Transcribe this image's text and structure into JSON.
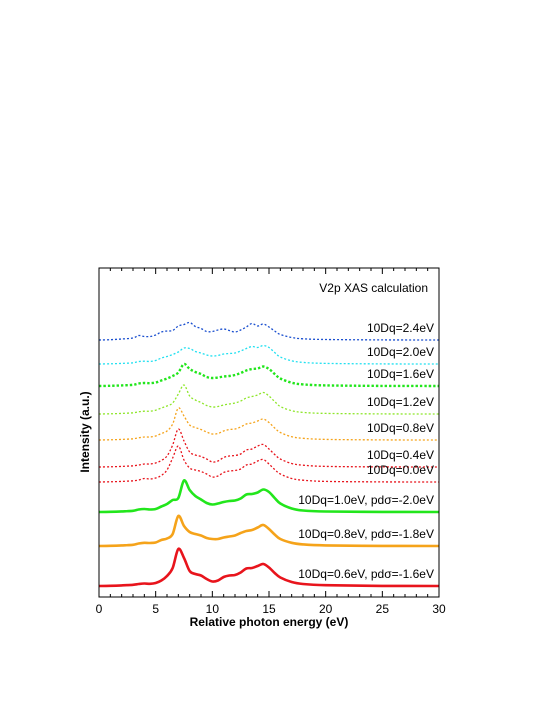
{
  "chart_data": {
    "type": "line",
    "title": "V2p XAS calculation",
    "xlabel": "Relative photon energy (eV)",
    "ylabel": "Intensity (a.u.)",
    "xlim": [
      0,
      30
    ],
    "xticks": [
      "0",
      "5",
      "10",
      "15",
      "20",
      "25",
      "30"
    ],
    "grid": false,
    "legend": "labels beside each curve, right side",
    "x": [
      0,
      1,
      2,
      3,
      3.5,
      4,
      4.5,
      5,
      5.5,
      6,
      6.5,
      7,
      7.5,
      8,
      8.5,
      9,
      9.5,
      10,
      10.5,
      11,
      11.5,
      12,
      12.5,
      13,
      13.5,
      14,
      14.5,
      15,
      15.5,
      16,
      17,
      18,
      20,
      25,
      30
    ],
    "series": [
      {
        "name": "10Dq=0.6eV, pdσ=-1.6eV",
        "color": "#e8141c",
        "style": "solid",
        "offset": 0,
        "values": [
          0.0,
          0.2,
          0.6,
          1.2,
          2.0,
          2.5,
          2.2,
          3.0,
          5.5,
          10.0,
          18.0,
          37.0,
          28.0,
          15.0,
          12.0,
          10.5,
          7.0,
          4.5,
          5.5,
          9.0,
          10.5,
          11.0,
          13.5,
          17.5,
          18.0,
          20.0,
          22.0,
          18.5,
          13.0,
          8.5,
          4.0,
          2.0,
          0.8,
          0.1,
          0.0
        ]
      },
      {
        "name": "10Dq=0.8eV, pdσ=-1.8eV",
        "color": "#f5a31a",
        "style": "solid",
        "offset": 40,
        "values": [
          0.0,
          0.2,
          0.6,
          1.2,
          2.5,
          3.2,
          3.0,
          3.5,
          6.0,
          7.5,
          12.0,
          30.0,
          20.0,
          14.0,
          12.0,
          10.5,
          8.0,
          7.0,
          7.0,
          8.5,
          9.5,
          10.5,
          13.0,
          15.0,
          16.0,
          18.5,
          21.0,
          17.0,
          11.5,
          7.0,
          3.2,
          1.6,
          0.6,
          0.1,
          0.0
        ]
      },
      {
        "name": "10Dq=1.0eV, pdσ=-2.0eV",
        "color": "#22e61c",
        "style": "solid",
        "offset": 74,
        "values": [
          0.0,
          0.2,
          0.6,
          1.2,
          2.5,
          3.0,
          2.5,
          3.0,
          5.5,
          8.0,
          12.0,
          14.0,
          31.5,
          22.0,
          16.0,
          12.5,
          9.0,
          7.5,
          8.5,
          10.0,
          11.0,
          11.5,
          13.5,
          17.5,
          18.0,
          19.5,
          22.5,
          20.0,
          14.0,
          8.5,
          3.5,
          1.5,
          0.5,
          0.1,
          0.0
        ]
      },
      {
        "name": "10Dq=0.0eV",
        "color": "#e8141c",
        "style": "dotted",
        "offset": 104,
        "values": [
          0.0,
          0.2,
          0.6,
          1.2,
          2.0,
          3.5,
          3.0,
          4.0,
          6.5,
          12.0,
          24.0,
          36.0,
          22.0,
          14.0,
          12.0,
          10.5,
          8.0,
          5.0,
          6.0,
          9.5,
          11.0,
          11.5,
          13.0,
          17.0,
          18.0,
          21.0,
          22.5,
          18.0,
          12.5,
          8.0,
          3.5,
          1.8,
          0.6,
          0.1,
          0.0
        ]
      },
      {
        "name": "10Dq=0.4eV",
        "color": "#e8141c",
        "style": "dotted",
        "offset": 119,
        "values": [
          0.0,
          0.2,
          0.6,
          1.2,
          2.0,
          3.0,
          3.0,
          4.0,
          6.5,
          11.0,
          22.0,
          38.0,
          26.0,
          15.0,
          12.0,
          10.5,
          8.0,
          5.0,
          6.0,
          9.5,
          11.0,
          11.5,
          13.0,
          17.0,
          18.0,
          21.0,
          22.5,
          18.0,
          12.5,
          8.0,
          3.5,
          1.8,
          0.6,
          0.1,
          0.0
        ]
      },
      {
        "name": "10Dq=0.8eV",
        "color": "#f5a31a",
        "style": "dotted",
        "offset": 146,
        "values": [
          0.0,
          0.2,
          0.6,
          1.2,
          2.2,
          3.0,
          3.0,
          4.0,
          6.5,
          9.0,
          16.0,
          32.0,
          24.0,
          15.0,
          12.5,
          10.5,
          8.0,
          6.0,
          6.5,
          9.0,
          10.5,
          11.0,
          13.0,
          16.0,
          17.0,
          19.0,
          21.0,
          17.5,
          12.0,
          7.5,
          3.3,
          1.7,
          0.6,
          0.1,
          0.0
        ]
      },
      {
        "name": "10Dq=1.2eV",
        "color": "#8ee62a",
        "style": "dotted",
        "offset": 172,
        "values": [
          0.0,
          0.2,
          0.6,
          1.2,
          2.2,
          2.8,
          2.8,
          3.8,
          6.0,
          8.0,
          11.0,
          20.0,
          29.0,
          18.0,
          14.0,
          11.5,
          8.5,
          7.0,
          7.5,
          9.0,
          10.0,
          11.0,
          13.0,
          16.0,
          17.5,
          19.0,
          21.5,
          18.0,
          12.5,
          7.5,
          3.3,
          1.6,
          0.6,
          0.1,
          0.0
        ]
      },
      {
        "name": "10Dq=1.6eV",
        "color": "#22e61c",
        "style": "dotted",
        "offset": 200,
        "values": [
          0.0,
          0.2,
          0.6,
          1.2,
          2.5,
          3.0,
          2.8,
          3.5,
          5.5,
          7.5,
          10.0,
          13.5,
          22.0,
          17.0,
          14.0,
          12.0,
          9.0,
          8.0,
          8.5,
          9.5,
          10.0,
          11.0,
          13.0,
          15.5,
          17.0,
          17.5,
          19.5,
          17.0,
          12.0,
          7.5,
          3.3,
          1.6,
          0.6,
          0.1,
          0.0
        ]
      },
      {
        "name": "10Dq=2.0eV",
        "color": "#22e0f0",
        "style": "dotted",
        "offset": 222,
        "values": [
          0.0,
          0.2,
          0.6,
          1.2,
          2.5,
          2.8,
          2.6,
          3.5,
          6.0,
          7.5,
          9.5,
          12.0,
          16.0,
          15.5,
          12.5,
          11.0,
          9.0,
          8.0,
          8.5,
          10.0,
          10.5,
          11.0,
          13.0,
          15.5,
          17.5,
          16.5,
          18.5,
          16.5,
          11.5,
          7.0,
          3.2,
          1.6,
          0.6,
          0.1,
          0.0
        ]
      },
      {
        "name": "10Dq=2.4eV",
        "color": "#1a4fcf",
        "style": "dotted",
        "offset": 246,
        "values": [
          0.0,
          0.3,
          1.0,
          2.0,
          4.5,
          3.5,
          3.5,
          5.0,
          8.0,
          9.0,
          9.5,
          14.0,
          15.5,
          17.5,
          13.5,
          11.5,
          8.5,
          8.5,
          10.0,
          11.0,
          9.5,
          8.0,
          10.0,
          13.0,
          16.5,
          14.0,
          16.0,
          13.0,
          9.0,
          5.5,
          2.5,
          1.2,
          0.5,
          0.1,
          0.0
        ]
      }
    ]
  }
}
